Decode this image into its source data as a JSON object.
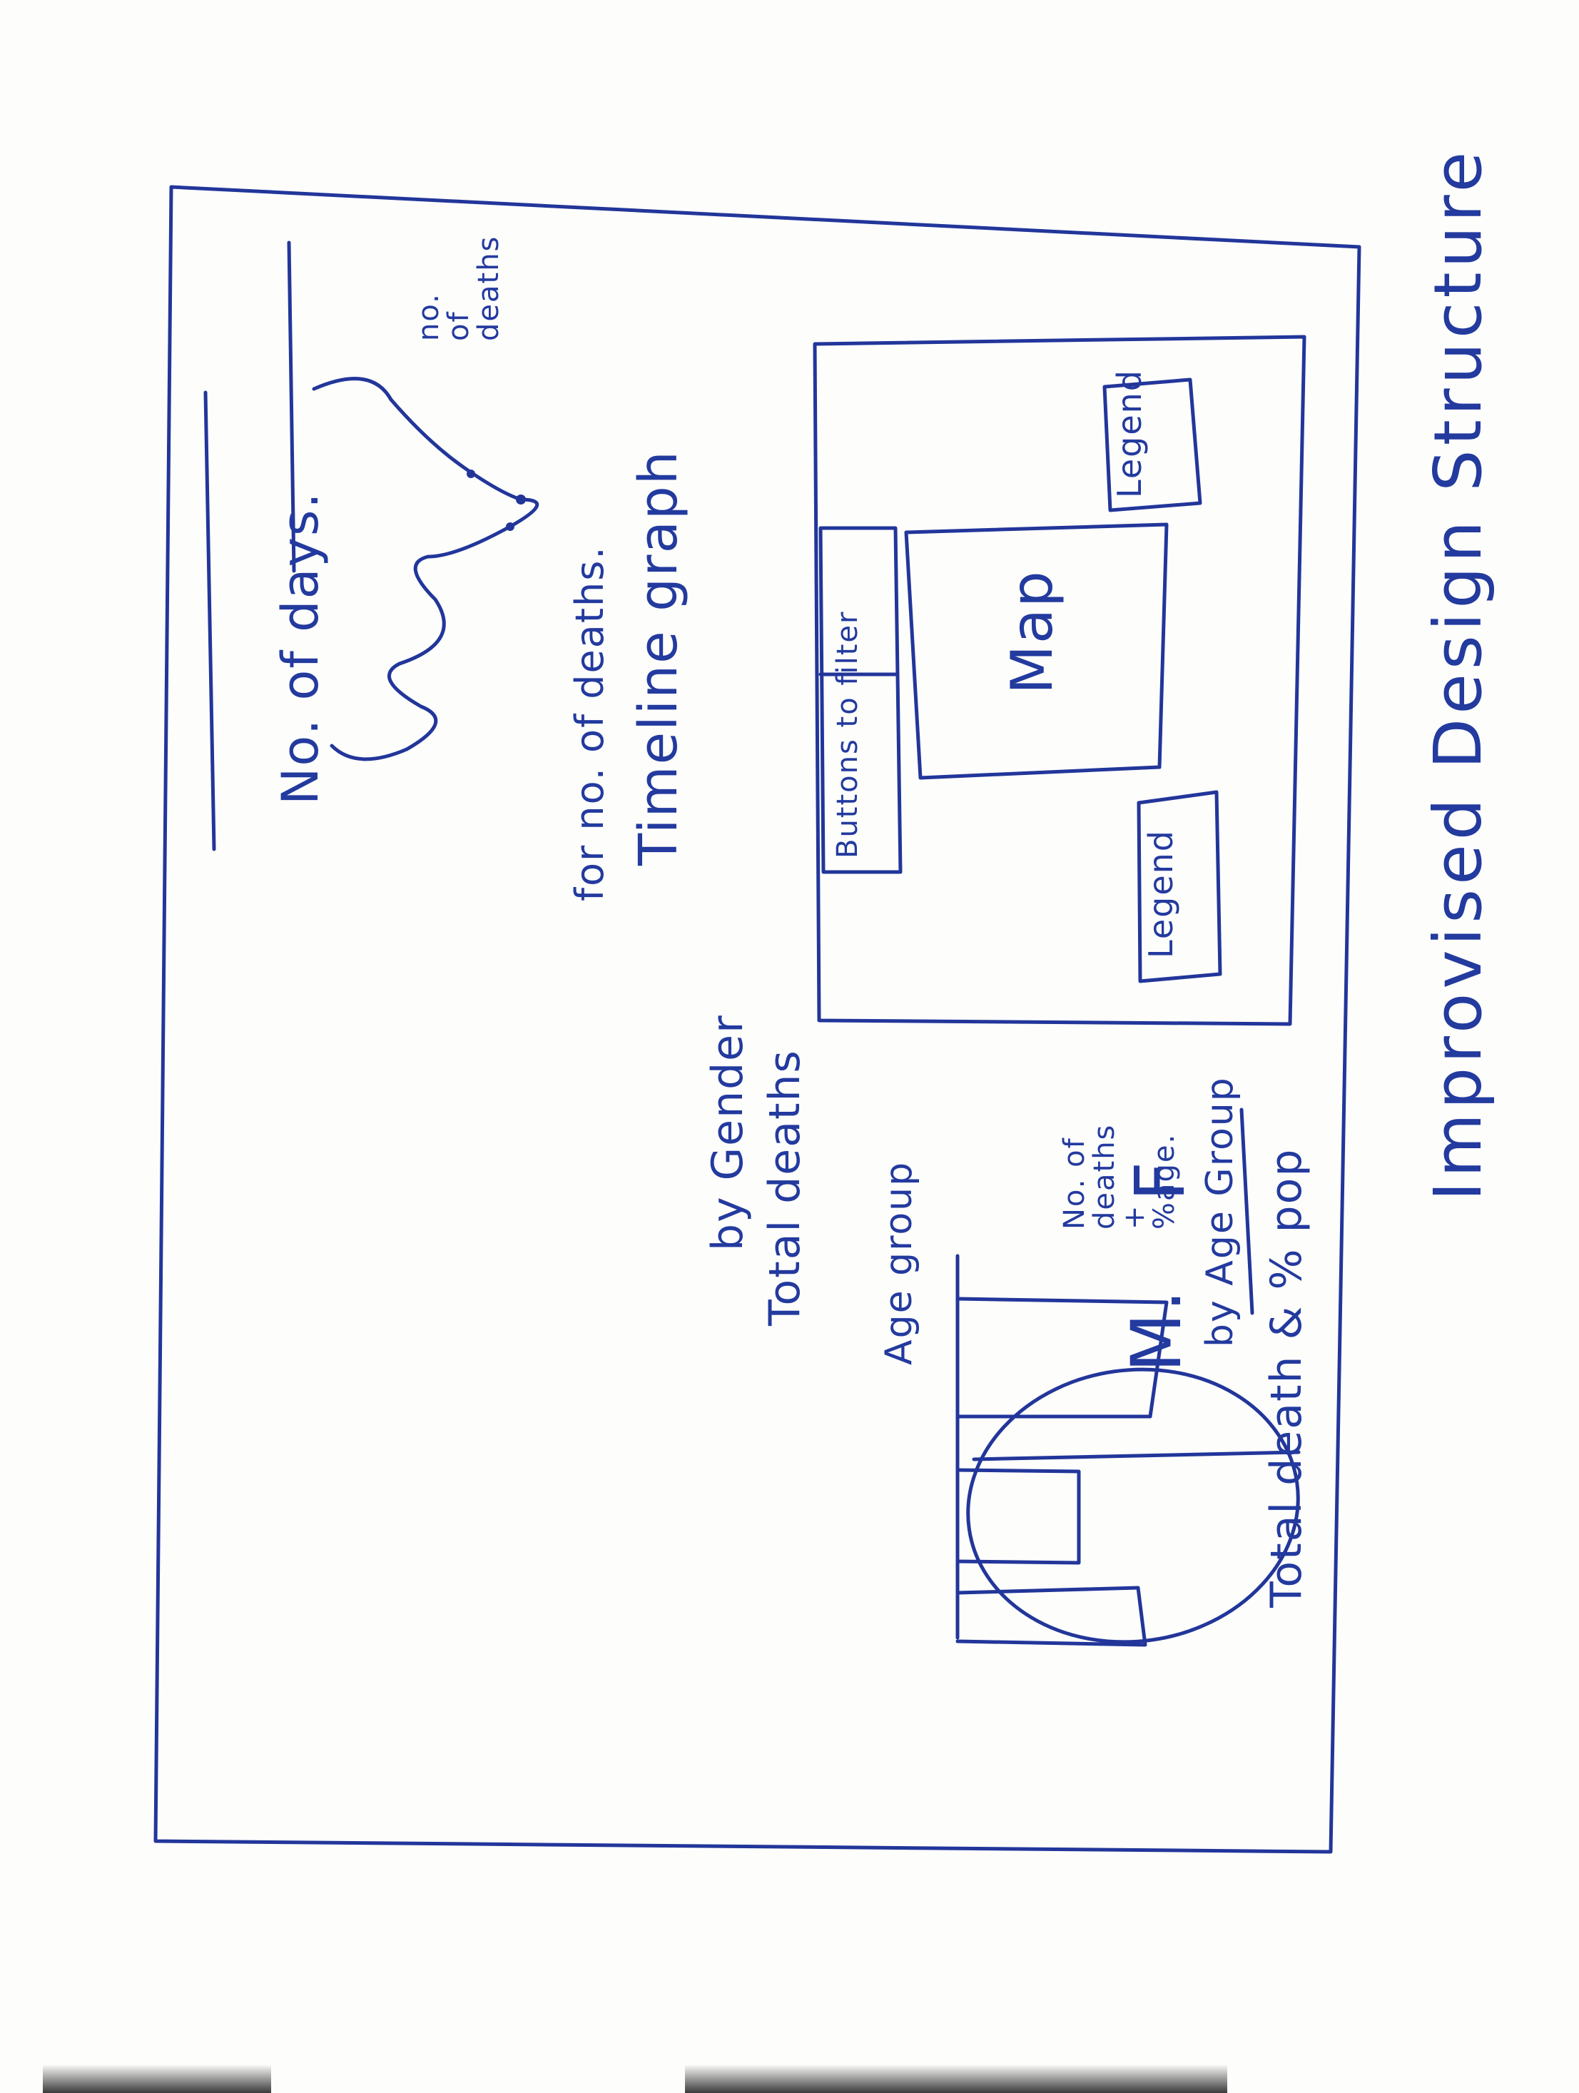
{
  "title": "Improvised Design Structure",
  "colors": {
    "ink": "#22369a",
    "paper": "#fdfdfc"
  },
  "map_panel": {
    "legend_top": "Legend",
    "legend_bottom": "Legend",
    "map_label": "Map",
    "buttons_label": "Buttons to filter"
  },
  "age_chart": {
    "title_line1": "Total death & % pop",
    "title_line2": "by Age Group",
    "ylabel": "No. of\ndeaths\n+\n%age.",
    "xlabel": "Age group"
  },
  "gender_chart": {
    "title_line1": "Total deaths",
    "title_line2": "by Gender",
    "label_f": "F",
    "label_m": "M."
  },
  "timeline_chart": {
    "title_line1": "Timeline graph",
    "title_line2": "for no. of deaths.",
    "ylabel": "no.\nof\ndeaths",
    "xlabel": "No. of days."
  }
}
